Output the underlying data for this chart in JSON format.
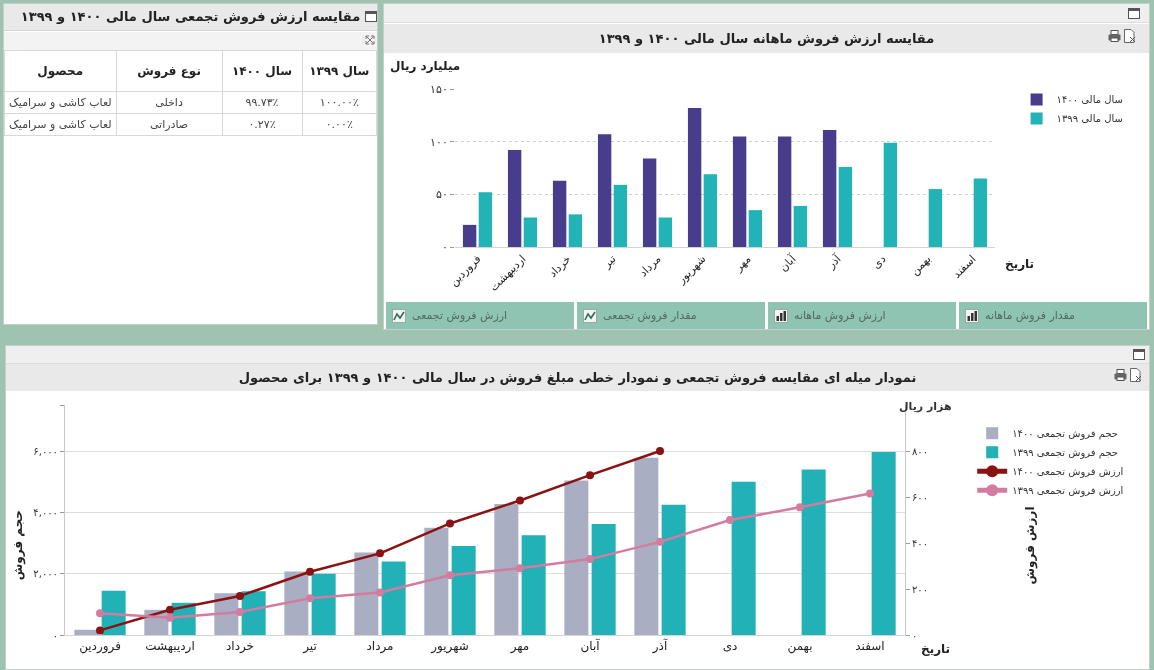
{
  "chart_data": [
    {
      "type": "other",
      "title": "مقایسه ارزش فروش تجمعی سال مالی ۱۴۰۰ و ۱۳۹۹",
      "annotations": [
        "سال ۱۳۹۹",
        "سال ۱۴۰۰",
        "نوع فروش",
        "محصول",
        "۱۰۰.۰۰٪",
        "۹۹.۷۳٪",
        "داخلی",
        "لعاب کاشی و سرامیک",
        "۰.۰۰٪",
        "۰.۲۷٪",
        "صادراتی",
        "لعاب کاشی و سرامیک"
      ]
    },
    {
      "type": "bar",
      "title": "مقایسه ارزش فروش ماهانه سال مالی ۱۴۰۰ و ۱۳۹۹",
      "ylabel": "میلیارد ریال",
      "xlabel": "تاریخ",
      "categories": [
        "فروردین",
        "اردیبهشت",
        "خرداد",
        "تیر",
        "مرداد",
        "شهریور",
        "مهر",
        "آبان",
        "آذر",
        "دی",
        "بهمن",
        "اسفند"
      ],
      "series": [
        {
          "name": "سال مالی ۱۴۰۰",
          "color": "#483c8c",
          "values": [
            21,
            92,
            63,
            107,
            84,
            132,
            105,
            105,
            111,
            null,
            null,
            null
          ]
        },
        {
          "name": "سال مالی ۱۳۹۹",
          "color": "#21b3b5",
          "values": [
            52,
            28,
            31,
            59,
            28,
            69,
            35,
            39,
            76,
            99,
            55,
            65
          ]
        }
      ],
      "ylim": [
        0,
        150
      ],
      "yticks": [
        {
          "value": 0,
          "label": "۰"
        },
        {
          "value": 50,
          "label": "۵۰"
        },
        {
          "value": 100,
          "label": "۱۰۰"
        },
        {
          "value": 150,
          "label": "۱۵۰"
        }
      ],
      "grid": "y",
      "legend": "top right",
      "annotations": [
        "ارزش فروش تجمعی",
        "مقدار فروش تجمعی",
        "ارزش فروش ماهانه",
        "مقدار فروش ماهانه"
      ]
    },
    {
      "type": "bar",
      "title": "نمودار میله ای مقایسه فروش تجمعی و نمودار خطی مبلغ فروش در سال مالی ۱۴۰۰ و ۱۳۹۹ برای محصول",
      "ylabel": "حجم فروش",
      "y2label": "ارزش فروش",
      "xlabel": "تاریخ",
      "categories": [
        "فروردین",
        "اردیبهشت",
        "خرداد",
        "تیر",
        "مرداد",
        "شهریور",
        "مهر",
        "آبان",
        "آذر",
        "دی",
        "بهمن",
        "اسفند"
      ],
      "series": [
        {
          "name": "حجم فروش تجمعی ۱۴۰۰",
          "color": "#a9aec3",
          "values": [
            170,
            820,
            1360,
            2070,
            2690,
            3500,
            4270,
            5040,
            5780,
            null,
            null,
            null
          ]
        },
        {
          "name": "حجم فروش تجمعی ۱۳۹۹",
          "color": "#22b1b6",
          "values": [
            1440,
            1050,
            1430,
            2000,
            2400,
            2900,
            3250,
            3620,
            4250,
            5000,
            5400,
            5970
          ]
        },
        {
          "name": "ارزش فروش تجمعی ۱۴۰۰",
          "type": "line",
          "axis": "y2",
          "color": "#8b1212",
          "values": [
            20,
            110,
            170,
            275,
            355,
            485,
            585,
            695,
            800,
            null,
            null,
            null
          ]
        },
        {
          "name": "ارزش فروش تجمعی ۱۳۹۹",
          "type": "line",
          "axis": "y2",
          "color": "#d27c9f",
          "values": [
            95,
            75,
            100,
            160,
            185,
            260,
            290,
            330,
            405,
            500,
            555,
            615
          ]
        }
      ],
      "ylim": [
        0,
        7500
      ],
      "yticks": [
        {
          "value": 0,
          "label": "۰"
        },
        {
          "value": 2000,
          "label": "۲,۰۰۰"
        },
        {
          "value": 4000,
          "label": "۴,۰۰۰"
        },
        {
          "value": 6000,
          "label": "۶,۰۰۰"
        },
        {
          "value": 7500,
          "label": null
        }
      ],
      "y2lim": [
        0,
        1000
      ],
      "y2ticks": [
        {
          "value": 0,
          "label": "۰"
        },
        {
          "value": 200,
          "label": "۲۰۰"
        },
        {
          "value": 400,
          "label": "۴۰۰"
        },
        {
          "value": 600,
          "label": "۶۰۰"
        },
        {
          "value": 800,
          "label": "۸۰۰"
        }
      ],
      "grid": "y",
      "legend": "top right",
      "marker": "circle",
      "annotations": [
        "هزار ریال"
      ]
    }
  ]
}
